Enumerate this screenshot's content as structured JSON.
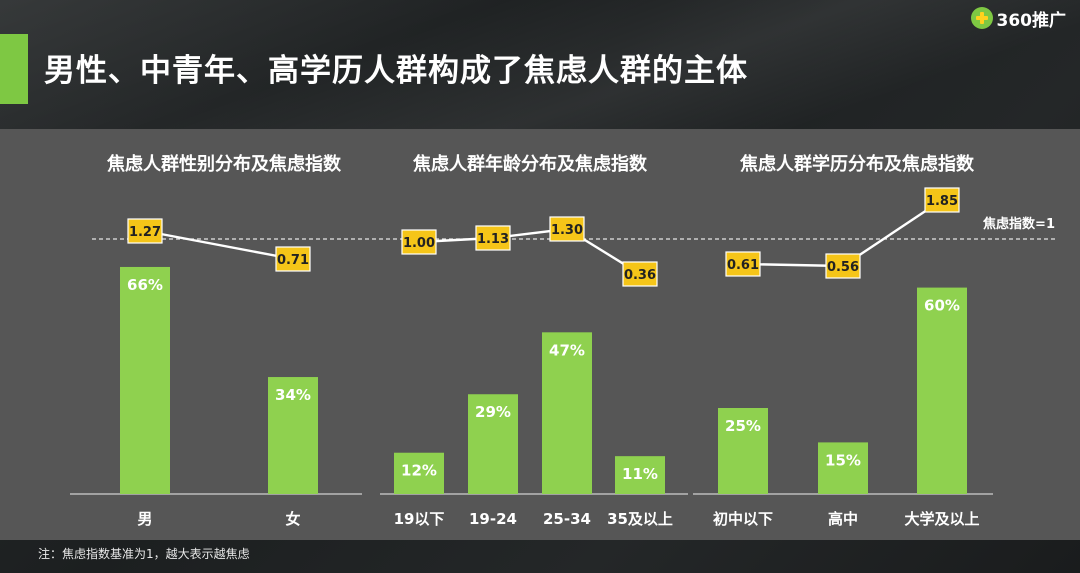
{
  "header": {
    "title": "男性、中青年、高学历人群构成了焦虑人群的主体",
    "logo_text": "360推广",
    "accent_color": "#7ec843"
  },
  "baseline_label": "焦虑指数=1",
  "footnote": "注：焦虑指数基准为1，越大表示越焦虑",
  "colors": {
    "bar": "#8fd14f",
    "label_box": "#f5c518",
    "line": "#ffffff",
    "panel": "#565656"
  },
  "chart_data": [
    {
      "type": "bar",
      "title": "焦虑人群性别分布及焦虑指数",
      "categories": [
        "男",
        "女"
      ],
      "values": [
        66,
        34
      ],
      "value_labels": [
        "66%",
        "34%"
      ],
      "series": [
        {
          "values": [
            66,
            34
          ]
        },
        {
          "values": [
            1.27,
            0.71
          ],
          "labels": [
            "1.27",
            "0.71"
          ]
        }
      ],
      "reference_line": 1
    },
    {
      "type": "bar",
      "title": "焦虑人群年龄分布及焦虑指数",
      "categories": [
        "19以下",
        "19-24",
        "25-34",
        "35及以上"
      ],
      "values": [
        12,
        29,
        47,
        11
      ],
      "value_labels": [
        "12%",
        "29%",
        "47%",
        "11%"
      ],
      "series": [
        {
          "values": [
            12,
            29,
            47,
            11
          ]
        },
        {
          "values": [
            1.0,
            1.13,
            1.3,
            0.36
          ],
          "labels": [
            "1.00",
            "1.13",
            "1.30",
            "0.36"
          ]
        }
      ],
      "reference_line": 1
    },
    {
      "type": "bar",
      "title": "焦虑人群学历分布及焦虑指数",
      "categories": [
        "初中以下",
        "高中",
        "大学及以上"
      ],
      "values": [
        25,
        15,
        60
      ],
      "value_labels": [
        "25%",
        "15%",
        "60%"
      ],
      "series": [
        {
          "values": [
            25,
            15,
            60
          ]
        },
        {
          "values": [
            0.61,
            0.56,
            1.85
          ],
          "labels": [
            "0.61",
            "0.56",
            "1.85"
          ]
        }
      ],
      "reference_line": 1
    }
  ]
}
